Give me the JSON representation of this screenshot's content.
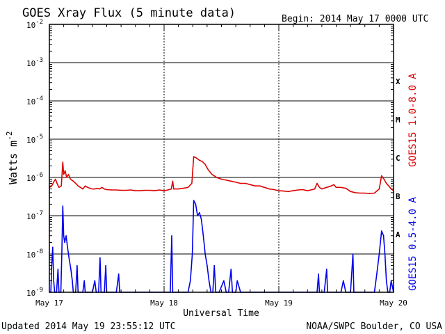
{
  "header": {
    "title": "GOES Xray Flux (5 minute data)",
    "begin": "Begin:  2014 May 17 0000 UTC"
  },
  "footer": {
    "updated": "Updated 2014 May 19 23:55:12 UTC",
    "source": "NOAA/SWPC Boulder, CO USA"
  },
  "colors": {
    "long": "#dd0000",
    "short": "#0000ee",
    "frame": "#000000"
  },
  "chart_data": {
    "type": "line",
    "title": "GOES Xray Flux (5 minute data)",
    "xlabel": "Universal Time",
    "ylabel": "Watts m",
    "ylabel_sup": "-2",
    "yscale": "log",
    "ylim": [
      1e-09,
      0.01
    ],
    "xlim": [
      0,
      72
    ],
    "x_units": "hours since 2014 May 17 0000 UTC",
    "y_ticks": [
      {
        "value": 1e-09,
        "base": "10",
        "exp": "-9"
      },
      {
        "value": 1e-08,
        "base": "10",
        "exp": "-8"
      },
      {
        "value": 1e-07,
        "base": "10",
        "exp": "-7"
      },
      {
        "value": 1e-06,
        "base": "10",
        "exp": "-6"
      },
      {
        "value": 1e-05,
        "base": "10",
        "exp": "-5"
      },
      {
        "value": 0.0001,
        "base": "10",
        "exp": "-4"
      },
      {
        "value": 0.001,
        "base": "10",
        "exp": "-3"
      },
      {
        "value": 0.01,
        "base": "10",
        "exp": "-2"
      }
    ],
    "x_ticks": [
      {
        "value": 0,
        "label": "May 17"
      },
      {
        "value": 24,
        "label": "May 18"
      },
      {
        "value": 48,
        "label": "May 19"
      },
      {
        "value": 72,
        "label": "May 20"
      }
    ],
    "flare_classes": [
      {
        "label": "X",
        "value": 0.00032
      },
      {
        "label": "M",
        "value": 3.2e-05
      },
      {
        "label": "C",
        "value": 3.2e-06
      },
      {
        "label": "B",
        "value": 3.2e-07
      },
      {
        "label": "A",
        "value": 3.2e-08
      }
    ],
    "series": [
      {
        "name": "GOES15 1.0-8.0 A",
        "color": "#dd0000",
        "points": [
          [
            0,
            5.5e-07
          ],
          [
            0.5,
            6e-07
          ],
          [
            1,
            8e-07
          ],
          [
            1.3,
            9e-07
          ],
          [
            1.6,
            7e-07
          ],
          [
            2,
            5.5e-07
          ],
          [
            2.5,
            6e-07
          ],
          [
            2.8,
            2.5e-06
          ],
          [
            3.0,
            1.2e-06
          ],
          [
            3.3,
            1.5e-06
          ],
          [
            3.6,
            1e-06
          ],
          [
            4,
            1.2e-06
          ],
          [
            4.4,
            9e-07
          ],
          [
            5,
            8e-07
          ],
          [
            5.5,
            7e-07
          ],
          [
            6,
            6e-07
          ],
          [
            6.5,
            5.5e-07
          ],
          [
            7,
            5e-07
          ],
          [
            7.5,
            6e-07
          ],
          [
            8,
            5.5e-07
          ],
          [
            8.5,
            5.2e-07
          ],
          [
            9,
            5e-07
          ],
          [
            9.5,
            5e-07
          ],
          [
            10,
            5.2e-07
          ],
          [
            10.5,
            5e-07
          ],
          [
            11,
            5.5e-07
          ],
          [
            11.5,
            5e-07
          ],
          [
            12,
            4.8e-07
          ],
          [
            13,
            4.7e-07
          ],
          [
            14,
            4.7e-07
          ],
          [
            15,
            4.6e-07
          ],
          [
            16,
            4.6e-07
          ],
          [
            17,
            4.7e-07
          ],
          [
            18,
            4.5e-07
          ],
          [
            19,
            4.5e-07
          ],
          [
            20,
            4.6e-07
          ],
          [
            21,
            4.6e-07
          ],
          [
            22,
            4.5e-07
          ],
          [
            23,
            4.7e-07
          ],
          [
            24,
            4.5e-07
          ],
          [
            24.5,
            4.6e-07
          ],
          [
            25,
            4.8e-07
          ],
          [
            25.5,
            5e-07
          ],
          [
            25.8,
            8e-07
          ],
          [
            26,
            5e-07
          ],
          [
            27,
            5e-07
          ],
          [
            28,
            5.2e-07
          ],
          [
            29,
            5.5e-07
          ],
          [
            29.8,
            7e-07
          ],
          [
            30.2,
            3.5e-06
          ],
          [
            30.8,
            3.2e-06
          ],
          [
            31.4,
            2.8e-06
          ],
          [
            32,
            2.6e-06
          ],
          [
            32.6,
            2.2e-06
          ],
          [
            33.2,
            1.6e-06
          ],
          [
            34,
            1.2e-06
          ],
          [
            35,
            1e-06
          ],
          [
            36,
            9e-07
          ],
          [
            37,
            8.5e-07
          ],
          [
            38,
            8e-07
          ],
          [
            39,
            7.5e-07
          ],
          [
            40,
            7e-07
          ],
          [
            41,
            7e-07
          ],
          [
            42,
            6.5e-07
          ],
          [
            43,
            6e-07
          ],
          [
            44,
            6e-07
          ],
          [
            45,
            5.5e-07
          ],
          [
            46,
            5e-07
          ],
          [
            47,
            4.8e-07
          ],
          [
            48,
            4.5e-07
          ],
          [
            49,
            4.4e-07
          ],
          [
            50,
            4.3e-07
          ],
          [
            51,
            4.5e-07
          ],
          [
            52,
            4.7e-07
          ],
          [
            53,
            4.8e-07
          ],
          [
            54,
            4.5e-07
          ],
          [
            55,
            4.8e-07
          ],
          [
            55.5,
            5e-07
          ],
          [
            56,
            7e-07
          ],
          [
            56.5,
            5.5e-07
          ],
          [
            57,
            5e-07
          ],
          [
            58,
            5.5e-07
          ],
          [
            59,
            6e-07
          ],
          [
            59.5,
            6.5e-07
          ],
          [
            60,
            5.5e-07
          ],
          [
            61,
            5.5e-07
          ],
          [
            62,
            5.2e-07
          ],
          [
            63,
            4.3e-07
          ],
          [
            64,
            4e-07
          ],
          [
            65,
            3.9e-07
          ],
          [
            66,
            3.9e-07
          ],
          [
            67,
            3.8e-07
          ],
          [
            68,
            3.9e-07
          ],
          [
            69,
            5e-07
          ],
          [
            69.5,
            1.1e-06
          ],
          [
            70,
            9e-07
          ],
          [
            70.5,
            7e-07
          ],
          [
            71,
            6e-07
          ],
          [
            71.5,
            5e-07
          ],
          [
            72,
            4.5e-07
          ]
        ]
      },
      {
        "name": "GOES15 0.5-4.0 A",
        "color": "#0000ee",
        "points": [
          [
            0,
            1e-09
          ],
          [
            0.3,
            1e-09
          ],
          [
            0.5,
            5e-09
          ],
          [
            0.7,
            1.5e-08
          ],
          [
            0.9,
            2e-09
          ],
          [
            1.1,
            1e-09
          ],
          [
            1.5,
            1e-09
          ],
          [
            1.8,
            4e-09
          ],
          [
            2.0,
            1e-09
          ],
          [
            2.4,
            1e-09
          ],
          [
            2.6,
            1e-08
          ],
          [
            2.8,
            1.8e-07
          ],
          [
            3.0,
            3e-08
          ],
          [
            3.2,
            2e-08
          ],
          [
            3.5,
            3e-08
          ],
          [
            3.8,
            1.5e-08
          ],
          [
            4.1,
            8e-09
          ],
          [
            4.5,
            4e-09
          ],
          [
            4.8,
            2e-09
          ],
          [
            5.0,
            1e-09
          ],
          [
            5.5,
            1e-09
          ],
          [
            5.8,
            5e-09
          ],
          [
            6.0,
            1e-09
          ],
          [
            6.5,
            1e-09
          ],
          [
            7.0,
            1e-09
          ],
          [
            7.3,
            2e-09
          ],
          [
            7.5,
            1e-09
          ],
          [
            8,
            1e-09
          ],
          [
            8.5,
            1e-09
          ],
          [
            9,
            1e-09
          ],
          [
            9.5,
            2e-09
          ],
          [
            9.8,
            1e-09
          ],
          [
            10.3,
            1e-09
          ],
          [
            10.6,
            8e-09
          ],
          [
            10.8,
            1e-09
          ],
          [
            11.5,
            1e-09
          ],
          [
            11.8,
            5e-09
          ],
          [
            12,
            1e-09
          ],
          [
            13,
            1e-09
          ],
          [
            14,
            1e-09
          ],
          [
            14.5,
            3e-09
          ],
          [
            14.7,
            1e-09
          ],
          [
            16,
            1e-09
          ],
          [
            18,
            1e-09
          ],
          [
            20,
            1e-09
          ],
          [
            22,
            1e-09
          ],
          [
            23.5,
            1e-09
          ],
          [
            24,
            1e-09
          ],
          [
            24.5,
            1e-09
          ],
          [
            25.0,
            1e-09
          ],
          [
            25.3,
            1e-09
          ],
          [
            25.6,
            3e-08
          ],
          [
            25.8,
            1e-09
          ],
          [
            27,
            1e-09
          ],
          [
            28,
            1e-09
          ],
          [
            29,
            1e-09
          ],
          [
            29.5,
            2e-09
          ],
          [
            29.9,
            1e-08
          ],
          [
            30.2,
            2.5e-07
          ],
          [
            30.6,
            2e-07
          ],
          [
            31,
            1e-07
          ],
          [
            31.4,
            1.2e-07
          ],
          [
            31.8,
            8e-08
          ],
          [
            32.2,
            3e-08
          ],
          [
            32.6,
            1e-08
          ],
          [
            33,
            5e-09
          ],
          [
            33.4,
            2e-09
          ],
          [
            33.8,
            1e-09
          ],
          [
            34.2,
            1e-09
          ],
          [
            34.5,
            5e-09
          ],
          [
            34.8,
            1e-09
          ],
          [
            35.5,
            1e-09
          ],
          [
            36.5,
            2e-09
          ],
          [
            37,
            1e-09
          ],
          [
            37.5,
            1e-09
          ],
          [
            38,
            4e-09
          ],
          [
            38.3,
            1e-09
          ],
          [
            39,
            1e-09
          ],
          [
            39.3,
            2e-09
          ],
          [
            40,
            1e-09
          ],
          [
            41,
            1e-09
          ],
          [
            42,
            1e-09
          ],
          [
            44,
            1e-09
          ],
          [
            46,
            1e-09
          ],
          [
            48,
            1e-09
          ],
          [
            50,
            1e-09
          ],
          [
            52,
            1e-09
          ],
          [
            54,
            1e-09
          ],
          [
            56,
            1e-09
          ],
          [
            56.3,
            3e-09
          ],
          [
            56.5,
            1e-09
          ],
          [
            57.5,
            1e-09
          ],
          [
            58,
            4e-09
          ],
          [
            58.2,
            1e-09
          ],
          [
            60,
            1e-09
          ],
          [
            61,
            1e-09
          ],
          [
            61.5,
            2e-09
          ],
          [
            62,
            1e-09
          ],
          [
            63,
            1e-09
          ],
          [
            63.5,
            1e-08
          ],
          [
            63.7,
            1e-09
          ],
          [
            65,
            1e-09
          ],
          [
            66,
            1e-09
          ],
          [
            67,
            1e-09
          ],
          [
            68,
            1e-09
          ],
          [
            68.5,
            3e-09
          ],
          [
            69,
            1e-08
          ],
          [
            69.5,
            4e-08
          ],
          [
            69.9,
            3e-08
          ],
          [
            70.2,
            1e-08
          ],
          [
            70.5,
            2e-09
          ],
          [
            70.8,
            1e-09
          ],
          [
            71.2,
            1e-09
          ],
          [
            71.5,
            2e-09
          ],
          [
            72,
            1e-09
          ]
        ]
      }
    ]
  }
}
